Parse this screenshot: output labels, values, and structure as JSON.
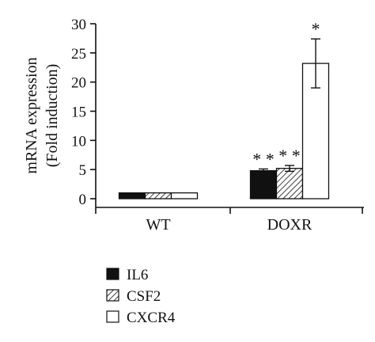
{
  "chart_data": {
    "type": "bar",
    "ylabel_lines": [
      "mRNA expression",
      "(Fold induction)"
    ],
    "categories": [
      "WT",
      "DOXR"
    ],
    "ylim": [
      0,
      30
    ],
    "yticks": [
      0,
      5,
      10,
      15,
      20,
      25,
      30
    ],
    "series": [
      {
        "name": "IL6",
        "values": [
          1.0,
          4.8
        ],
        "errors": [
          0.05,
          0.3
        ],
        "significance": [
          "",
          "**"
        ],
        "fill": "solid",
        "color": "#111111"
      },
      {
        "name": "CSF2",
        "values": [
          1.0,
          5.2
        ],
        "errors": [
          0.05,
          0.5
        ],
        "significance": [
          "",
          "**"
        ],
        "fill": "hatched",
        "color": "#111111"
      },
      {
        "name": "CXCR4",
        "values": [
          1.0,
          23.2
        ],
        "errors": [
          0.05,
          4.2
        ],
        "significance": [
          "",
          "*"
        ],
        "fill": "white",
        "color": "#111111"
      }
    ],
    "legend_position": "bottom-left",
    "grid": false
  }
}
